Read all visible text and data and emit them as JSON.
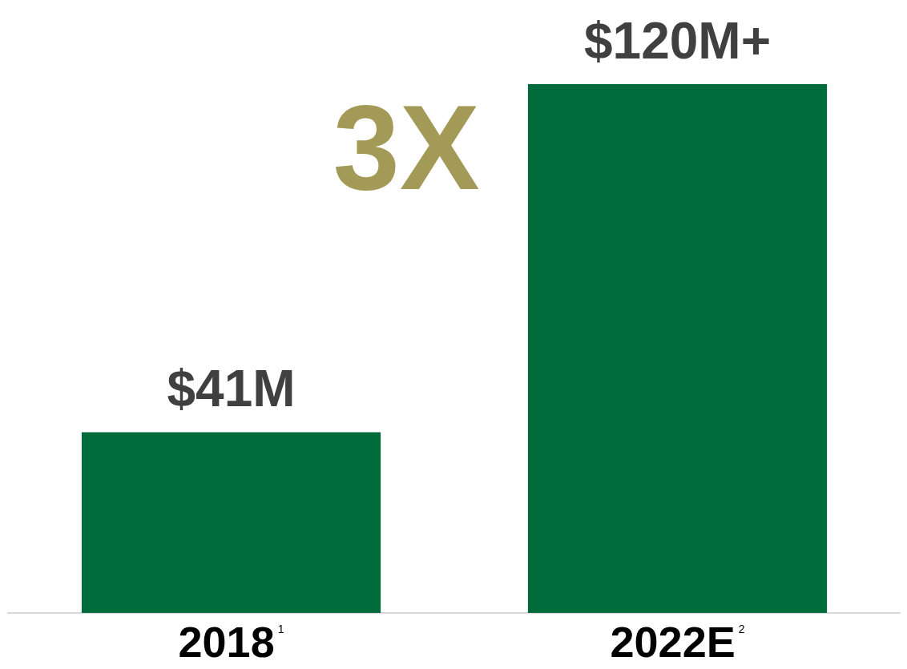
{
  "chart_data": {
    "type": "bar",
    "categories": [
      "2018$^{1}$",
      "2022E$^{2}$"
    ],
    "values": [
      41,
      120
    ],
    "color": "#006b3a",
    "value_labels": [
      "$41M",
      "$120M+"
    ],
    "annotations": [
      "3X"
    ],
    "legend": false,
    "grid": false
  }
}
